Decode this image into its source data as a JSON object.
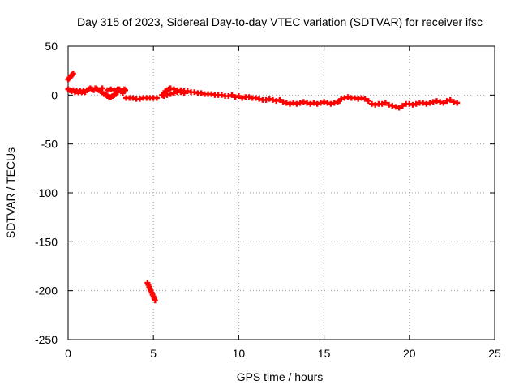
{
  "chart_data": {
    "type": "scatter",
    "title": "Day 315 of 2023, Sidereal Day-to-day VTEC variation (SDTVAR) for receiver ifsc",
    "xlabel": "GPS time / hours",
    "ylabel": "SDTVAR / TECUs",
    "xlim": [
      0,
      25
    ],
    "ylim": [
      -250,
      50
    ],
    "xticks": [
      0,
      5,
      10,
      15,
      20,
      25
    ],
    "yticks": [
      -250,
      -200,
      -150,
      -100,
      -50,
      0,
      50
    ],
    "grid": true,
    "marker": "+",
    "series": [
      {
        "name": "SDTVAR",
        "color": "#ff0000",
        "points": [
          [
            0.0,
            16
          ],
          [
            0.05,
            17
          ],
          [
            0.1,
            18
          ],
          [
            0.15,
            19
          ],
          [
            0.2,
            20
          ],
          [
            0.25,
            21
          ],
          [
            0.3,
            22
          ],
          [
            0.0,
            6
          ],
          [
            0.1,
            5
          ],
          [
            0.2,
            4
          ],
          [
            0.3,
            5
          ],
          [
            0.4,
            3
          ],
          [
            0.5,
            4
          ],
          [
            0.6,
            3
          ],
          [
            0.7,
            4
          ],
          [
            0.8,
            3
          ],
          [
            0.9,
            4
          ],
          [
            1.0,
            3
          ],
          [
            1.1,
            5
          ],
          [
            1.2,
            6
          ],
          [
            1.3,
            7
          ],
          [
            1.4,
            6
          ],
          [
            1.5,
            5
          ],
          [
            1.6,
            7
          ],
          [
            1.7,
            6
          ],
          [
            1.8,
            5
          ],
          [
            1.9,
            4
          ],
          [
            2.0,
            3
          ],
          [
            2.0,
            7
          ],
          [
            2.1,
            1
          ],
          [
            2.2,
            0
          ],
          [
            2.3,
            -1
          ],
          [
            2.4,
            -2
          ],
          [
            2.5,
            -2
          ],
          [
            2.6,
            -1
          ],
          [
            2.7,
            0
          ],
          [
            2.8,
            1
          ],
          [
            2.9,
            3
          ],
          [
            2.3,
            5
          ],
          [
            2.5,
            6
          ],
          [
            2.7,
            5
          ],
          [
            2.9,
            6
          ],
          [
            3.0,
            6
          ],
          [
            3.1,
            4
          ],
          [
            3.2,
            2
          ],
          [
            3.3,
            6
          ],
          [
            3.35,
            5
          ],
          [
            3.4,
            -3
          ],
          [
            3.6,
            -3
          ],
          [
            3.8,
            -3
          ],
          [
            4.0,
            -4
          ],
          [
            4.2,
            -4
          ],
          [
            4.4,
            -3
          ],
          [
            4.6,
            -3
          ],
          [
            4.8,
            -3
          ],
          [
            5.0,
            -3
          ],
          [
            5.2,
            -3
          ],
          [
            5.5,
            0
          ],
          [
            5.6,
            2
          ],
          [
            5.7,
            4
          ],
          [
            5.8,
            5
          ],
          [
            5.9,
            6
          ],
          [
            6.0,
            7
          ],
          [
            6.2,
            6
          ],
          [
            6.4,
            5
          ],
          [
            6.6,
            5
          ],
          [
            6.8,
            4
          ],
          [
            5.6,
            -1
          ],
          [
            5.8,
            0
          ],
          [
            6.0,
            1
          ],
          [
            6.2,
            2
          ],
          [
            6.4,
            3
          ],
          [
            6.6,
            3
          ],
          [
            6.8,
            2
          ],
          [
            7.0,
            4
          ],
          [
            7.2,
            3
          ],
          [
            7.4,
            3
          ],
          [
            7.6,
            2
          ],
          [
            7.8,
            2
          ],
          [
            8.0,
            1
          ],
          [
            8.2,
            1
          ],
          [
            8.4,
            1
          ],
          [
            8.6,
            0
          ],
          [
            8.8,
            0
          ],
          [
            9.0,
            0
          ],
          [
            9.2,
            -1
          ],
          [
            9.4,
            -1
          ],
          [
            9.6,
            0
          ],
          [
            9.8,
            -2
          ],
          [
            10.0,
            -1
          ],
          [
            10.2,
            -3
          ],
          [
            10.4,
            -2
          ],
          [
            10.6,
            -2
          ],
          [
            10.8,
            -3
          ],
          [
            11.0,
            -3
          ],
          [
            11.2,
            -4
          ],
          [
            11.4,
            -5
          ],
          [
            11.6,
            -5
          ],
          [
            11.8,
            -4
          ],
          [
            12.0,
            -5
          ],
          [
            12.2,
            -6
          ],
          [
            12.4,
            -5
          ],
          [
            12.6,
            -7
          ],
          [
            12.8,
            -8
          ],
          [
            13.0,
            -9
          ],
          [
            13.2,
            -8
          ],
          [
            13.4,
            -9
          ],
          [
            13.6,
            -8
          ],
          [
            13.8,
            -7
          ],
          [
            14.0,
            -8
          ],
          [
            14.2,
            -9
          ],
          [
            14.4,
            -8
          ],
          [
            14.6,
            -9
          ],
          [
            14.8,
            -8
          ],
          [
            15.0,
            -7
          ],
          [
            15.2,
            -8
          ],
          [
            15.4,
            -9
          ],
          [
            15.6,
            -8
          ],
          [
            15.8,
            -7
          ],
          [
            15.9,
            -6
          ],
          [
            16.0,
            -4
          ],
          [
            16.2,
            -3
          ],
          [
            16.4,
            -2
          ],
          [
            16.6,
            -3
          ],
          [
            16.8,
            -3
          ],
          [
            17.0,
            -4
          ],
          [
            17.2,
            -3
          ],
          [
            17.4,
            -4
          ],
          [
            17.6,
            -6
          ],
          [
            17.8,
            -9
          ],
          [
            18.0,
            -10
          ],
          [
            18.2,
            -9
          ],
          [
            18.4,
            -9
          ],
          [
            18.6,
            -8
          ],
          [
            18.8,
            -10
          ],
          [
            19.0,
            -11
          ],
          [
            19.2,
            -12
          ],
          [
            19.4,
            -13
          ],
          [
            19.6,
            -11
          ],
          [
            19.8,
            -9
          ],
          [
            20.0,
            -9
          ],
          [
            20.2,
            -10
          ],
          [
            20.4,
            -9
          ],
          [
            20.6,
            -8
          ],
          [
            20.8,
            -8
          ],
          [
            21.0,
            -9
          ],
          [
            21.2,
            -8
          ],
          [
            21.4,
            -7
          ],
          [
            21.6,
            -6
          ],
          [
            21.8,
            -7
          ],
          [
            22.0,
            -8
          ],
          [
            22.2,
            -6
          ],
          [
            22.4,
            -5
          ],
          [
            22.6,
            -7
          ],
          [
            22.8,
            -8
          ],
          [
            4.65,
            -192
          ],
          [
            4.7,
            -194
          ],
          [
            4.75,
            -196
          ],
          [
            4.8,
            -198
          ],
          [
            4.85,
            -200
          ],
          [
            4.9,
            -202
          ],
          [
            4.95,
            -204
          ],
          [
            5.0,
            -206
          ],
          [
            5.05,
            -208
          ],
          [
            5.1,
            -210
          ]
        ]
      }
    ]
  }
}
